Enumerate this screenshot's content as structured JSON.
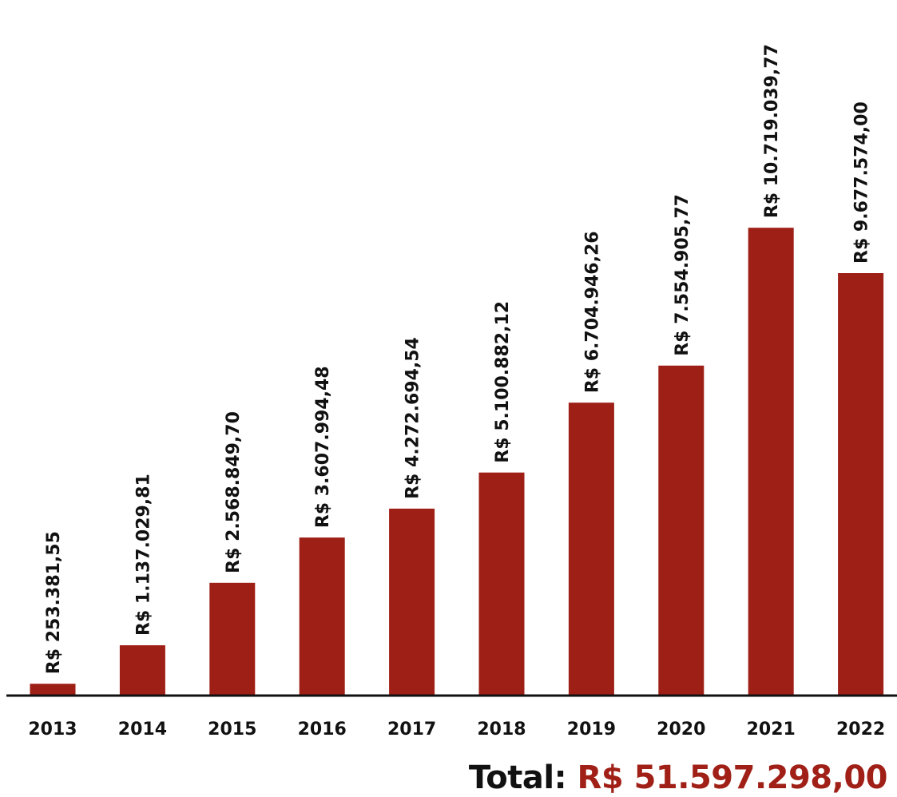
{
  "colors": {
    "bar": "#9e1f16",
    "text": "#111111",
    "accent": "#a01f16",
    "axis": "#111111"
  },
  "chart_data": {
    "type": "bar",
    "categories": [
      "2013",
      "2014",
      "2015",
      "2016",
      "2017",
      "2018",
      "2019",
      "2020",
      "2021",
      "2022"
    ],
    "values": [
      253381.55,
      1137029.81,
      2568849.7,
      3607994.48,
      4272694.54,
      5100882.12,
      6704946.26,
      7554905.77,
      10719039.77,
      9677574.0
    ],
    "data_labels": [
      "R$ 253.381,55",
      "R$ 1.137.029,81",
      "R$ 2.568.849,70",
      "R$ 3.607.994,48",
      "R$ 4.272.694,54",
      "R$ 5.100.882,12",
      "R$ 6.704.946,26",
      "R$ 7.554.905,77",
      "R$ 10.719.039,77",
      "R$ 9.677.574,00"
    ],
    "ylim": [
      0,
      11400000
    ],
    "grid": false,
    "legend": "none",
    "title": "",
    "xlabel": "",
    "ylabel": ""
  },
  "total": {
    "prefix": "Total: ",
    "value": "R$ 51.597.298,00"
  }
}
